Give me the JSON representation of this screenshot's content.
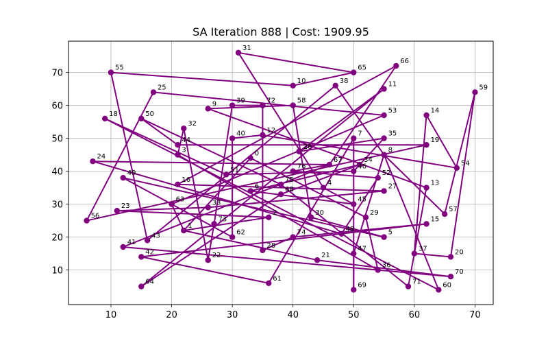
{
  "chart_data": {
    "type": "line",
    "title": "SA Iteration 888 | Cost: 1909.95",
    "xlabel": "",
    "ylabel": "",
    "xlim": [
      3,
      73
    ],
    "ylim": [
      -0.5,
      79.5
    ],
    "xticks": [
      10,
      20,
      30,
      40,
      50,
      60,
      70
    ],
    "yticks": [
      10,
      20,
      30,
      40,
      50,
      60,
      70
    ],
    "grid": true,
    "color": "#800080",
    "points": [
      {
        "id": "0",
        "x": 33,
        "y": 44
      },
      {
        "id": "1",
        "x": 22,
        "y": 22
      },
      {
        "id": "2",
        "x": 36,
        "y": 26
      },
      {
        "id": "3",
        "x": 21,
        "y": 45
      },
      {
        "id": "4",
        "x": 45,
        "y": 35
      },
      {
        "id": "5",
        "x": 55,
        "y": 20
      },
      {
        "id": "6",
        "x": 33,
        "y": 34
      },
      {
        "id": "7",
        "x": 50,
        "y": 50
      },
      {
        "id": "8",
        "x": 55,
        "y": 45
      },
      {
        "id": "9",
        "x": 26,
        "y": 59
      },
      {
        "id": "10",
        "x": 40,
        "y": 66
      },
      {
        "id": "11",
        "x": 55,
        "y": 65
      },
      {
        "id": "12",
        "x": 35,
        "y": 51
      },
      {
        "id": "13",
        "x": 62,
        "y": 35
      },
      {
        "id": "14",
        "x": 62,
        "y": 57
      },
      {
        "id": "15",
        "x": 62,
        "y": 24
      },
      {
        "id": "16",
        "x": 21,
        "y": 36
      },
      {
        "id": "18",
        "x": 9,
        "y": 56
      },
      {
        "id": "19",
        "x": 62,
        "y": 48
      },
      {
        "id": "20",
        "x": 66,
        "y": 14
      },
      {
        "id": "21",
        "x": 44,
        "y": 13
      },
      {
        "id": "22",
        "x": 26,
        "y": 13
      },
      {
        "id": "23",
        "x": 11,
        "y": 28
      },
      {
        "id": "24",
        "x": 7,
        "y": 43
      },
      {
        "id": "25",
        "x": 17,
        "y": 64
      },
      {
        "id": "26",
        "x": 41,
        "y": 46
      },
      {
        "id": "27",
        "x": 55,
        "y": 34
      },
      {
        "id": "28",
        "x": 35,
        "y": 16
      },
      {
        "id": "29",
        "x": 52,
        "y": 26
      },
      {
        "id": "30",
        "x": 43,
        "y": 26
      },
      {
        "id": "31",
        "x": 31,
        "y": 76
      },
      {
        "id": "32",
        "x": 22,
        "y": 53
      },
      {
        "id": "33",
        "x": 26,
        "y": 29
      },
      {
        "id": "34",
        "x": 51,
        "y": 42
      },
      {
        "id": "35",
        "x": 55,
        "y": 50
      },
      {
        "id": "36",
        "x": 54,
        "y": 10
      },
      {
        "id": "37",
        "x": 60,
        "y": 15
      },
      {
        "id": "38",
        "x": 47,
        "y": 66
      },
      {
        "id": "39",
        "x": 30,
        "y": 60
      },
      {
        "id": "40",
        "x": 30,
        "y": 50
      },
      {
        "id": "41",
        "x": 12,
        "y": 17
      },
      {
        "id": "42",
        "x": 15,
        "y": 14
      },
      {
        "id": "43",
        "x": 16,
        "y": 19
      },
      {
        "id": "44",
        "x": 21,
        "y": 48
      },
      {
        "id": "45",
        "x": 50,
        "y": 30
      },
      {
        "id": "46",
        "x": 50,
        "y": 40
      },
      {
        "id": "47",
        "x": 50,
        "y": 15
      },
      {
        "id": "48",
        "x": 48,
        "y": 21
      },
      {
        "id": "49",
        "x": 12,
        "y": 38
      },
      {
        "id": "50",
        "x": 15,
        "y": 56
      },
      {
        "id": "51",
        "x": 29,
        "y": 39
      },
      {
        "id": "52",
        "x": 54,
        "y": 38
      },
      {
        "id": "53",
        "x": 55,
        "y": 57
      },
      {
        "id": "54",
        "x": 67,
        "y": 41
      },
      {
        "id": "55",
        "x": 10,
        "y": 70
      },
      {
        "id": "56",
        "x": 6,
        "y": 25
      },
      {
        "id": "57",
        "x": 65,
        "y": 27
      },
      {
        "id": "58",
        "x": 40,
        "y": 60
      },
      {
        "id": "59",
        "x": 70,
        "y": 64
      },
      {
        "id": "60",
        "x": 64,
        "y": 4
      },
      {
        "id": "61",
        "x": 36,
        "y": 6
      },
      {
        "id": "62",
        "x": 30,
        "y": 20
      },
      {
        "id": "63",
        "x": 20,
        "y": 30
      },
      {
        "id": "64",
        "x": 15,
        "y": 5
      },
      {
        "id": "65",
        "x": 50,
        "y": 70
      },
      {
        "id": "66",
        "x": 57,
        "y": 72
      },
      {
        "id": "67",
        "x": 46,
        "y": 42
      },
      {
        "id": "68",
        "x": 38,
        "y": 33
      },
      {
        "id": "69",
        "x": 50,
        "y": 4
      },
      {
        "id": "70",
        "x": 66,
        "y": 8
      },
      {
        "id": "71",
        "x": 59,
        "y": 5
      },
      {
        "id": "72",
        "x": 35,
        "y": 60
      },
      {
        "id": "73",
        "x": 27,
        "y": 24
      },
      {
        "id": "74",
        "x": 40,
        "y": 20
      },
      {
        "id": "75",
        "x": 38,
        "y": 36
      },
      {
        "id": "76",
        "x": 40,
        "y": 40
      }
    ],
    "route": [
      "31",
      "65",
      "10",
      "55",
      "43",
      "38",
      "8",
      "57",
      "59",
      "20",
      "37",
      "14",
      "54",
      "12",
      "40",
      "62",
      "49",
      "5",
      "30",
      "58",
      "9",
      "13",
      "71",
      "75",
      "50",
      "44",
      "19",
      "56",
      "25",
      "53",
      "63",
      "1",
      "2",
      "23",
      "33",
      "27",
      "16",
      "66",
      "67",
      "76",
      "52",
      "48",
      "24",
      "67",
      "41",
      "70",
      "21",
      "1",
      "0",
      "29",
      "36",
      "3",
      "32",
      "22",
      "73",
      "39",
      "72",
      "28",
      "74",
      "15",
      "15",
      "42",
      "61",
      "7",
      "69",
      "47",
      "8",
      "60",
      "18",
      "51",
      "46",
      "35",
      "26",
      "11",
      "64",
      "68",
      "34",
      "6",
      "45",
      "45",
      "4",
      "31"
    ]
  }
}
